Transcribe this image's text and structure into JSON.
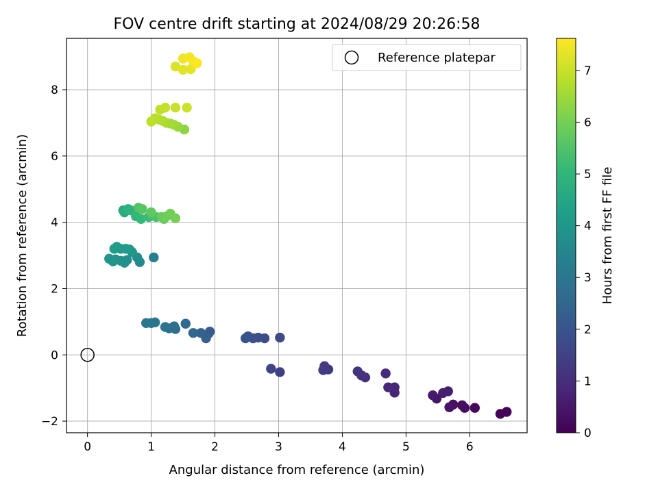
{
  "chart_data": {
    "type": "scatter",
    "title": "FOV centre drift starting at 2024/08/29 20:26:58",
    "xlabel": "Angular distance from reference (arcmin)",
    "ylabel": "Rotation from reference (arcmin)",
    "xlim": [
      -0.33,
      6.9
    ],
    "ylim": [
      -2.35,
      9.55
    ],
    "xticks": [
      0,
      1,
      2,
      3,
      4,
      5,
      6
    ],
    "yticks": [
      -2,
      0,
      2,
      4,
      6,
      8
    ],
    "grid": true,
    "legend": {
      "placement": "top-right",
      "entries": [
        "Reference platepar"
      ]
    },
    "reference_point": {
      "x": 0,
      "y": 0
    },
    "colorbar": {
      "label": "Hours from first FF file",
      "range": [
        0,
        7.62
      ],
      "ticks": [
        0,
        1,
        2,
        3,
        4,
        5,
        6,
        7
      ],
      "colormap": "viridis",
      "colors": [
        "#440154",
        "#482878",
        "#3e4989",
        "#31688e",
        "#26828e",
        "#1f9e89",
        "#35b779",
        "#6ece58",
        "#b5de2b",
        "#fde725"
      ]
    },
    "series": [
      {
        "points": [
          [
            6.48,
            -1.78,
            0.0
          ],
          [
            6.58,
            -1.72,
            0.05
          ],
          [
            6.08,
            -1.6,
            0.15
          ],
          [
            5.92,
            -1.6,
            0.22
          ],
          [
            5.88,
            -1.52,
            0.28
          ],
          [
            5.74,
            -1.5,
            0.34
          ],
          [
            5.68,
            -1.58,
            0.4
          ],
          [
            5.48,
            -1.32,
            0.48
          ],
          [
            5.42,
            -1.22,
            0.55
          ],
          [
            5.58,
            -1.15,
            0.6
          ],
          [
            5.66,
            -1.1,
            0.65
          ],
          [
            4.82,
            -1.14,
            0.75
          ],
          [
            4.82,
            -0.98,
            0.8
          ],
          [
            4.72,
            -0.98,
            0.85
          ],
          [
            4.68,
            -0.56,
            0.95
          ],
          [
            4.36,
            -0.68,
            1.05
          ],
          [
            4.3,
            -0.62,
            1.1
          ],
          [
            4.24,
            -0.5,
            1.15
          ],
          [
            3.78,
            -0.44,
            1.25
          ],
          [
            3.72,
            -0.34,
            1.3
          ],
          [
            3.7,
            -0.46,
            1.35
          ],
          [
            3.02,
            -0.52,
            1.5
          ],
          [
            2.88,
            -0.42,
            1.55
          ],
          [
            3.02,
            0.52,
            1.7
          ],
          [
            2.78,
            0.5,
            1.8
          ],
          [
            2.68,
            0.52,
            1.85
          ],
          [
            2.6,
            0.5,
            1.9
          ],
          [
            2.52,
            0.56,
            1.95
          ],
          [
            2.48,
            0.5,
            2.0
          ],
          [
            1.92,
            0.7,
            2.2
          ],
          [
            1.9,
            0.64,
            2.25
          ],
          [
            1.86,
            0.5,
            2.3
          ],
          [
            1.78,
            0.66,
            2.4
          ],
          [
            1.66,
            0.66,
            2.5
          ],
          [
            1.54,
            0.94,
            2.6
          ],
          [
            1.38,
            0.78,
            2.7
          ],
          [
            1.36,
            0.86,
            2.75
          ],
          [
            1.28,
            0.8,
            2.8
          ],
          [
            1.22,
            0.84,
            2.85
          ],
          [
            1.06,
            0.98,
            2.95
          ],
          [
            1.0,
            0.96,
            3.0
          ],
          [
            0.92,
            0.96,
            3.05
          ],
          [
            1.04,
            2.94,
            3.3
          ],
          [
            0.82,
            2.8,
            3.6
          ],
          [
            0.78,
            2.94,
            3.7
          ],
          [
            0.62,
            2.86,
            3.75
          ],
          [
            0.58,
            2.78,
            3.8
          ],
          [
            0.52,
            2.84,
            3.85
          ],
          [
            0.44,
            2.88,
            3.9
          ],
          [
            0.4,
            2.82,
            3.92
          ],
          [
            0.34,
            2.9,
            3.95
          ],
          [
            0.7,
            3.1,
            4.0
          ],
          [
            0.66,
            3.18,
            4.05
          ],
          [
            0.6,
            3.2,
            4.1
          ],
          [
            0.52,
            3.2,
            4.12
          ],
          [
            0.46,
            3.26,
            4.15
          ],
          [
            0.42,
            3.2,
            4.2
          ],
          [
            0.56,
            4.36,
            4.6
          ],
          [
            0.58,
            4.3,
            4.7
          ],
          [
            0.64,
            4.4,
            4.8
          ],
          [
            0.68,
            4.36,
            4.9
          ],
          [
            0.76,
            4.18,
            5.0
          ],
          [
            0.84,
            4.1,
            5.1
          ],
          [
            0.96,
            4.16,
            5.2
          ],
          [
            1.02,
            4.2,
            5.3
          ],
          [
            1.08,
            4.16,
            5.4
          ],
          [
            0.8,
            4.44,
            5.5
          ],
          [
            0.86,
            4.4,
            5.6
          ],
          [
            1.0,
            4.3,
            5.7
          ],
          [
            1.16,
            4.16,
            5.8
          ],
          [
            1.2,
            4.1,
            5.85
          ],
          [
            1.24,
            4.18,
            5.9
          ],
          [
            1.3,
            4.26,
            5.95
          ],
          [
            1.38,
            4.12,
            6.0
          ],
          [
            1.52,
            6.8,
            6.3
          ],
          [
            1.42,
            6.88,
            6.4
          ],
          [
            1.36,
            6.94,
            6.5
          ],
          [
            1.3,
            6.98,
            6.55
          ],
          [
            1.24,
            7.0,
            6.6
          ],
          [
            1.18,
            7.06,
            6.7
          ],
          [
            1.12,
            7.1,
            6.75
          ],
          [
            1.06,
            7.14,
            6.8
          ],
          [
            1.0,
            7.04,
            6.85
          ],
          [
            1.14,
            7.4,
            6.9
          ],
          [
            1.22,
            7.46,
            6.95
          ],
          [
            1.38,
            7.46,
            7.0
          ],
          [
            1.56,
            7.46,
            7.05
          ],
          [
            1.38,
            8.7,
            7.2
          ],
          [
            1.5,
            8.6,
            7.3
          ],
          [
            1.62,
            8.62,
            7.35
          ],
          [
            1.68,
            8.78,
            7.4
          ],
          [
            1.5,
            8.94,
            7.45
          ],
          [
            1.6,
            8.98,
            7.5
          ],
          [
            1.66,
            8.86,
            7.55
          ],
          [
            1.72,
            8.8,
            7.62
          ]
        ]
      }
    ]
  }
}
